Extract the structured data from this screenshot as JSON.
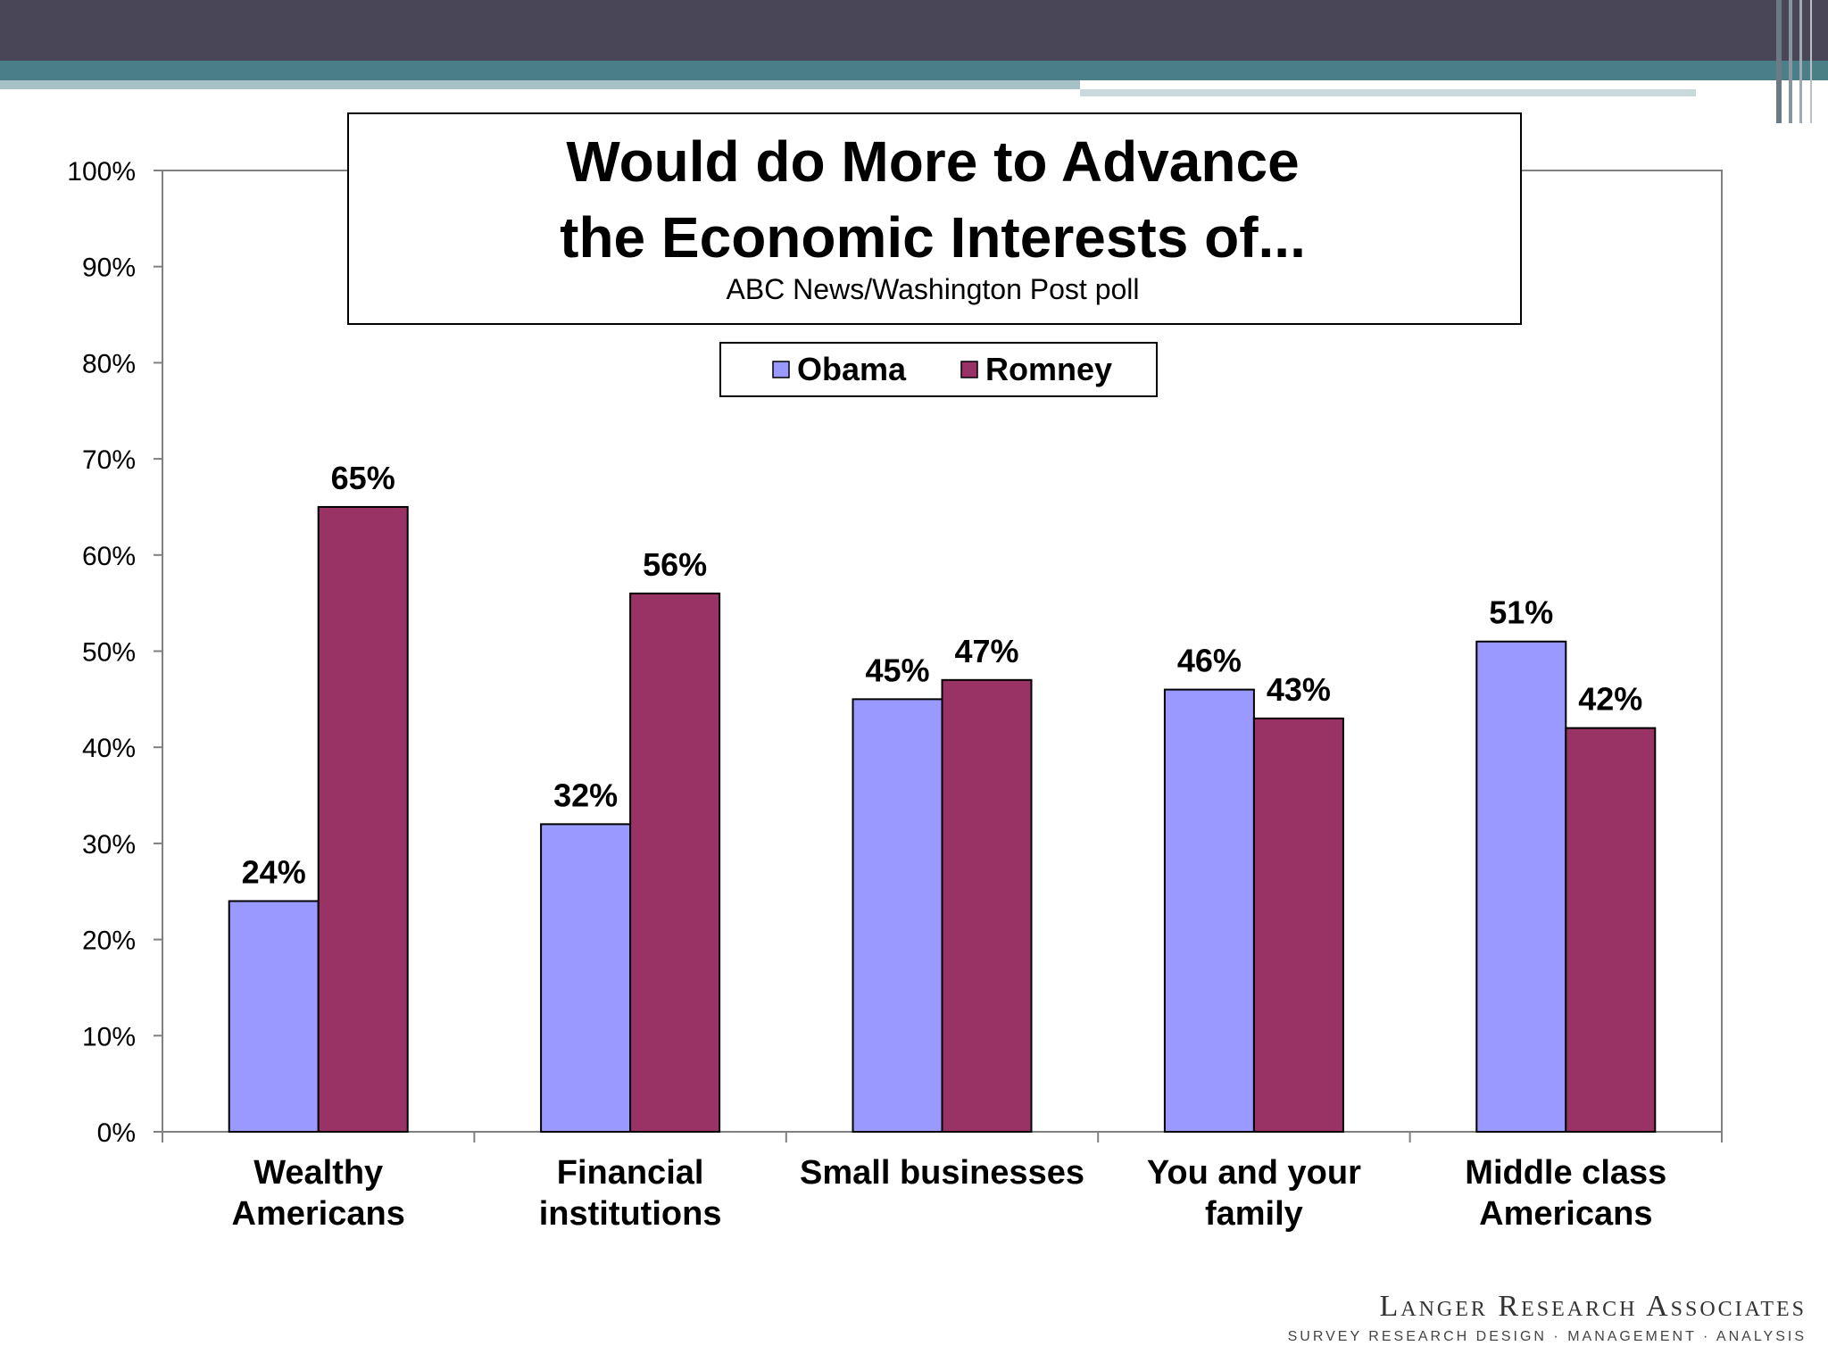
{
  "brand": {
    "name": "Langer Research Associates",
    "tagline": "SURVEY RESEARCH DESIGN · MANAGEMENT · ANALYSIS"
  },
  "colors": {
    "banner_dark": "#484657",
    "banner_teal": "#4a7f87",
    "banner_light": "#a7c2c6",
    "obama": "#9999ff",
    "romney": "#993366"
  },
  "chart_data": {
    "type": "bar",
    "title_lines": [
      "Would do More to Advance",
      "the Economic Interests of..."
    ],
    "subtitle": "ABC News/Washington Post poll",
    "xlabel": "",
    "ylabel": "",
    "ylim": [
      0,
      100
    ],
    "yticks": [
      0,
      10,
      20,
      30,
      40,
      50,
      60,
      70,
      80,
      90,
      100
    ],
    "ytick_labels": [
      "0%",
      "10%",
      "20%",
      "30%",
      "40%",
      "50%",
      "60%",
      "70%",
      "80%",
      "90%",
      "100%"
    ],
    "categories": [
      [
        "Wealthy",
        "Americans"
      ],
      [
        "Financial",
        "institutions"
      ],
      [
        "Small businesses"
      ],
      [
        "You and your",
        "family"
      ],
      [
        "Middle class",
        "Americans"
      ]
    ],
    "series": [
      {
        "name": "Obama",
        "color": "#9999ff",
        "values": [
          24,
          32,
          45,
          46,
          51
        ],
        "labels": [
          "24%",
          "32%",
          "45%",
          "46%",
          "51%"
        ]
      },
      {
        "name": "Romney",
        "color": "#993366",
        "values": [
          65,
          56,
          47,
          43,
          42
        ],
        "labels": [
          "65%",
          "56%",
          "47%",
          "43%",
          "42%"
        ]
      }
    ],
    "legend_position": "top-center",
    "grid": false
  }
}
